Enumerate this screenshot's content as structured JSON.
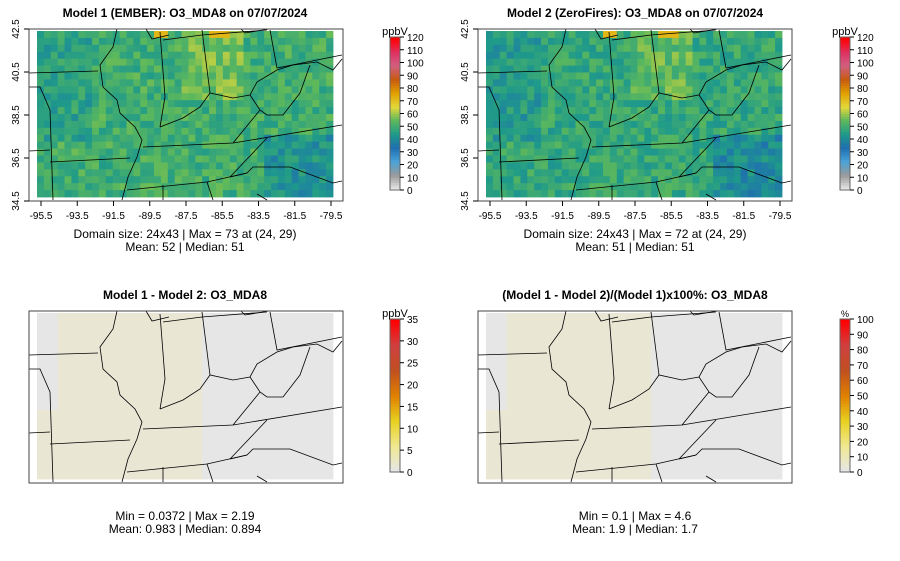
{
  "panels": [
    {
      "title": "Model 1 (EMBER): O3_MDA8 on 07/07/2024",
      "line1": "Domain size: 24x43 | Max = 73 at (24, 29)",
      "line2": "Mean: 52 |  Median: 51",
      "unit": "ppbV",
      "ticks": [
        "0",
        "10",
        "20",
        "30",
        "40",
        "50",
        "60",
        "70",
        "80",
        "90",
        "100",
        "110",
        "120"
      ],
      "kind": "conc",
      "mean": 52,
      "show_axes": true
    },
    {
      "title": "Model 2 (ZeroFires): O3_MDA8 on 07/07/2024",
      "line1": "Domain size: 24x43 | Max = 72 at (24, 29)",
      "line2": "Mean: 51 |  Median: 51",
      "unit": "ppbV",
      "ticks": [
        "0",
        "10",
        "20",
        "30",
        "40",
        "50",
        "60",
        "70",
        "80",
        "90",
        "100",
        "110",
        "120"
      ],
      "kind": "conc",
      "mean": 51,
      "show_axes": true
    },
    {
      "title": "Model 1 - Model 2: O3_MDA8",
      "line1": "Min = 0.0372 | Max = 2.19",
      "line2": "Mean: 0.983 |  Median: 0.894",
      "unit": "ppbV",
      "ticks": [
        "0",
        "5",
        "10",
        "15",
        "20",
        "25",
        "30",
        "35"
      ],
      "kind": "diff",
      "show_axes": false
    },
    {
      "title": "(Model 1 - Model 2)/(Model 1)x100%: O3_MDA8",
      "line1": "Min = 0.1 | Max = 4.6",
      "line2": "Mean: 1.9 |  Median: 1.7",
      "unit": "%",
      "ticks": [
        "0",
        "10",
        "20",
        "30",
        "40",
        "50",
        "60",
        "70",
        "80",
        "90",
        "100"
      ],
      "kind": "pct",
      "show_axes": false
    }
  ],
  "axes": {
    "x_ticks": [
      "-95.5",
      "-93.5",
      "-91.5",
      "-89.5",
      "-87.5",
      "-85.5",
      "-83.5",
      "-81.5",
      "-79.5"
    ],
    "y_ticks": [
      "34.5",
      "36.5",
      "38.5",
      "40.5",
      "42.5"
    ]
  },
  "colors": {
    "conc": [
      "#e6e6e6",
      "#9a9a9a",
      "#4aa3d8",
      "#1f6fb0",
      "#1f9a8a",
      "#5cb85c",
      "#e5d83a",
      "#e0a000",
      "#c85a10",
      "#d06080",
      "#e03060",
      "#ff0000"
    ],
    "diff": [
      "#e6e6e6",
      "#f0e890",
      "#e8d020",
      "#e08000",
      "#c05020",
      "#d04040",
      "#ff0000"
    ]
  }
}
